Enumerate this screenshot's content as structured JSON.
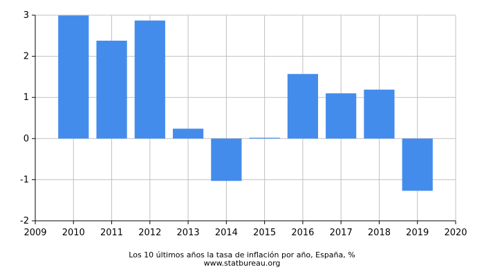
{
  "chart_data": {
    "type": "bar",
    "categories": [
      "2010",
      "2011",
      "2012",
      "2013",
      "2014",
      "2015",
      "2016",
      "2017",
      "2018",
      "2019"
    ],
    "values": [
      3.0,
      2.38,
      2.87,
      0.24,
      -1.03,
      0.02,
      1.57,
      1.1,
      1.19,
      -1.27
    ],
    "x_ticks": [
      "2009",
      "2010",
      "2011",
      "2012",
      "2013",
      "2014",
      "2015",
      "2016",
      "2017",
      "2018",
      "2019",
      "2020"
    ],
    "y_ticks": [
      "3",
      "2",
      "1",
      "0",
      "-1",
      "-2"
    ],
    "xlim": [
      2009,
      2020
    ],
    "ylim": [
      -2,
      3
    ],
    "grid": true,
    "bar_color": "#448cec",
    "grid_color": "#c0c0c0",
    "title": "Los 10 últimos años la tasa de inflación por año, España, %",
    "source": "www.statbureau.org",
    "xlabel": "",
    "ylabel": ""
  }
}
